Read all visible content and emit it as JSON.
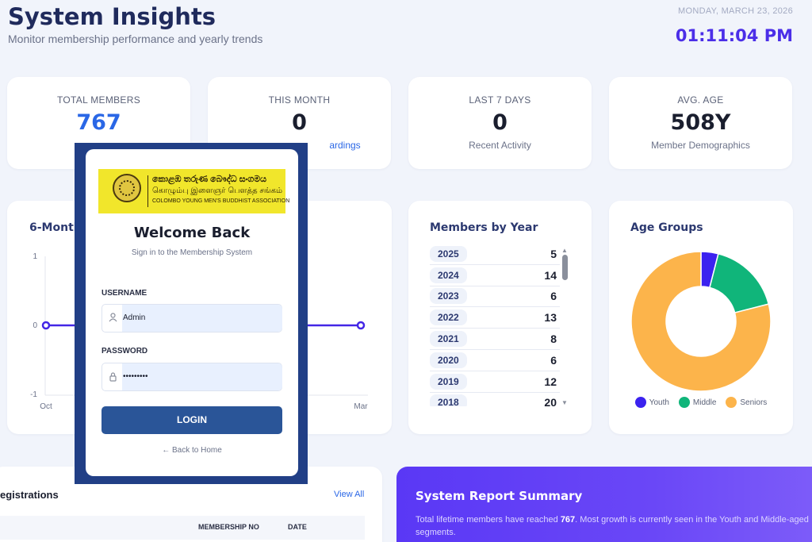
{
  "header": {
    "title": "System Insights",
    "subtitle": "Monitor membership performance and yearly trends",
    "date": "MONDAY, MARCH 23, 2026",
    "time": "01:11:04 PM"
  },
  "stats": [
    {
      "label": "TOTAL MEMBERS",
      "value": "767",
      "sub": ""
    },
    {
      "label": "THIS MONTH",
      "value": "0",
      "sub": "ardings"
    },
    {
      "label": "LAST 7 DAYS",
      "value": "0",
      "sub": "Recent Activity"
    },
    {
      "label": "AVG. AGE",
      "value": "508Y",
      "sub": "Member Demographics"
    }
  ],
  "trend": {
    "title": "6-Month",
    "y_ticks": [
      "1",
      "0",
      "-1"
    ],
    "x_first": "Oct",
    "x_last": "Mar"
  },
  "members_by_year": {
    "title": "Members by Year",
    "rows": [
      {
        "year": "2025",
        "count": "5"
      },
      {
        "year": "2024",
        "count": "14"
      },
      {
        "year": "2023",
        "count": "6"
      },
      {
        "year": "2022",
        "count": "13"
      },
      {
        "year": "2021",
        "count": "8"
      },
      {
        "year": "2020",
        "count": "6"
      },
      {
        "year": "2019",
        "count": "12"
      },
      {
        "year": "2018",
        "count": "20"
      }
    ]
  },
  "age_groups": {
    "title": "Age Groups",
    "legend": [
      {
        "name": "Youth",
        "color": "#3b22ef"
      },
      {
        "name": "Middle",
        "color": "#10b57a"
      },
      {
        "name": "Seniors",
        "color": "#fcb44b"
      }
    ]
  },
  "chart_data": {
    "type": "pie",
    "title": "Age Groups",
    "categories": [
      "Youth",
      "Middle",
      "Seniors"
    ],
    "values": [
      4,
      17,
      79
    ],
    "colors": [
      "#3b22ef",
      "#10b57a",
      "#fcb44b"
    ],
    "donut": true,
    "legend_position": "bottom"
  },
  "registrations": {
    "title": "egistrations",
    "view_all": "View All",
    "columns": [
      "MEMBERSHIP NO",
      "DATE"
    ]
  },
  "report": {
    "title": "System Report Summary",
    "text_before": "Total lifetime members have reached ",
    "text_bold": "767",
    "text_after": ". Most growth is currently seen in the Youth and Middle-aged segments."
  },
  "login": {
    "logo_line1": "කොළඹ තරුණ බෞද්ධ සංගමය",
    "logo_line2": "கொழும்பு இளைஞர் பௌத்த சங்கம்",
    "logo_line3": "COLOMBO YOUNG MEN'S BUDDHIST ASSOCIATION",
    "title": "Welcome Back",
    "subtitle": "Sign in to the Membership System",
    "username_label": "USERNAME",
    "username_value": "Admin",
    "password_label": "PASSWORD",
    "password_value": "•••••••••",
    "login_button": "LOGIN",
    "back_link": "← Back to Home",
    "icons": {
      "user": "user-icon",
      "lock": "lock-icon"
    }
  }
}
